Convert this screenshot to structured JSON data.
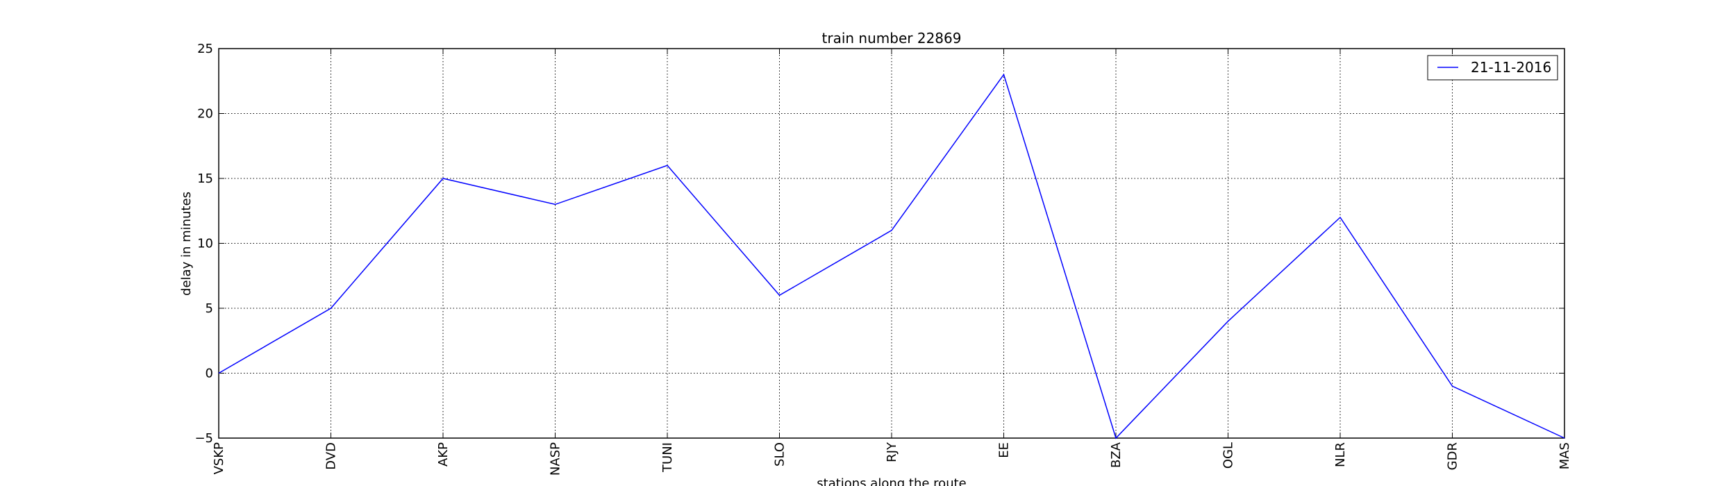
{
  "chart_data": {
    "type": "line",
    "title": "train number 22869",
    "xlabel": "stations along the route",
    "ylabel": "delay in minutes",
    "categories": [
      "VSKP",
      "DVD",
      "AKP",
      "NASP",
      "TUNI",
      "SLO",
      "RJY",
      "EE",
      "BZA",
      "OGL",
      "NLR",
      "GDR",
      "MAS"
    ],
    "series": [
      {
        "name": "21-11-2016",
        "values": [
          0,
          5,
          15,
          13,
          16,
          6,
          11,
          23,
          -5,
          4,
          12,
          -1,
          -5
        ],
        "color": "#0000ff"
      }
    ],
    "ylim": [
      -5,
      25
    ],
    "yticks": [
      -5,
      0,
      5,
      10,
      15,
      20,
      25
    ],
    "grid": true,
    "legend_position": "top-right"
  }
}
